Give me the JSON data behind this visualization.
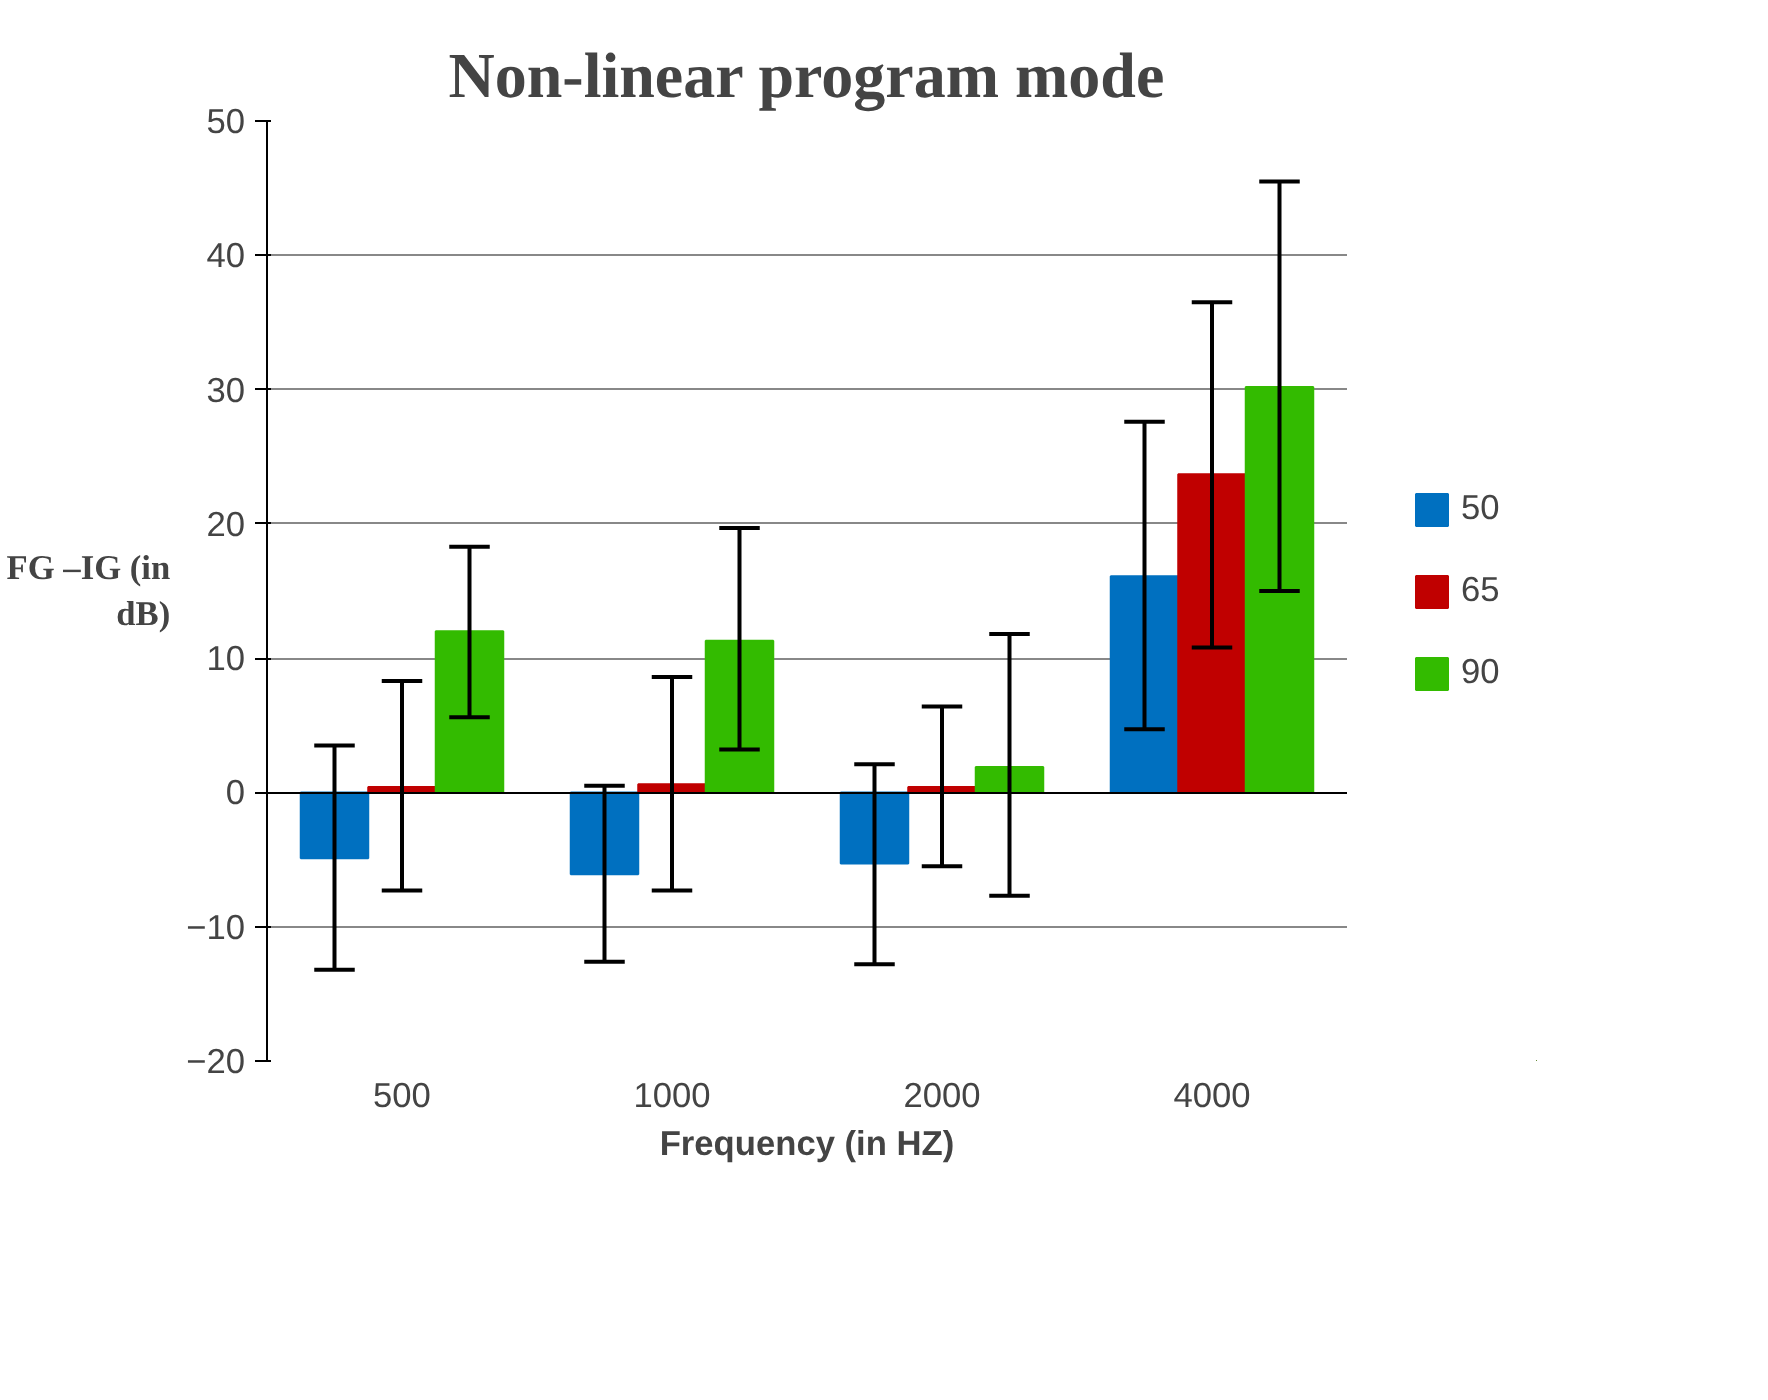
{
  "chart_data": {
    "type": "bar",
    "title": "Non-linear program mode",
    "xlabel": "Frequency (in HZ)",
    "ylabel": "FG –IG (in dB)",
    "categories": [
      "500",
      "1000",
      "2000",
      "4000"
    ],
    "series": [
      {
        "name": "50",
        "color": "#0070c0",
        "values": [
          -4.9,
          -6.1,
          -5.3,
          16.1
        ],
        "errors": [
          [
            -13.2,
            3.5
          ],
          [
            -12.6,
            0.5
          ],
          [
            -12.8,
            2.1
          ],
          [
            4.7,
            27.6
          ]
        ]
      },
      {
        "name": "65",
        "color": "#c00000",
        "values": [
          0.4,
          0.6,
          0.4,
          23.7
        ],
        "errors": [
          [
            -7.3,
            8.3
          ],
          [
            -7.3,
            8.6
          ],
          [
            -5.5,
            6.4
          ],
          [
            10.8,
            36.5
          ]
        ]
      },
      {
        "name": "90",
        "color": "#33bb00",
        "values": [
          12.0,
          11.3,
          1.9,
          30.2
        ],
        "errors": [
          [
            5.6,
            18.3
          ],
          [
            3.2,
            19.7
          ],
          [
            -7.7,
            11.8
          ],
          [
            15.0,
            45.5
          ]
        ]
      }
    ],
    "ylim": [
      -20,
      50
    ],
    "yticks": [
      -20,
      -10,
      0,
      10,
      20,
      30,
      40,
      50
    ],
    "grid": "y",
    "legend": "right"
  }
}
